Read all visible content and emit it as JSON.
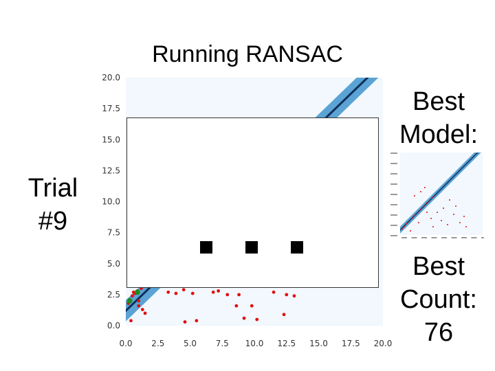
{
  "slide": {
    "title": "Running RANSAC",
    "trial_label": "Trial #9",
    "best_model_label": "Best Model:",
    "best_count_label": "Best Count: 76"
  },
  "colors": {
    "band": "#5aa3d4",
    "line": "#0d2d5a",
    "background": "#f2f8fd",
    "points": "#e01010",
    "sample_points": "#1e8c1e"
  },
  "chart_data": {
    "type": "scatter",
    "title": "",
    "xlabel": "",
    "ylabel": "",
    "xlim": [
      0,
      20
    ],
    "ylim": [
      0,
      20
    ],
    "xticks": [
      "0.0",
      "2.5",
      "5.0",
      "7.5",
      "10.0",
      "12.5",
      "15.0",
      "17.5",
      "20.0"
    ],
    "yticks": [
      "0.0",
      "2.5",
      "5.0",
      "7.5",
      "10.0",
      "12.5",
      "15.0",
      "17.5",
      "20.0"
    ],
    "grid": false,
    "fit_line": {
      "slope": 1.0,
      "intercept": 1.2
    },
    "points": [
      [
        0.3,
        2.1
      ],
      [
        0.5,
        2.4
      ],
      [
        0.7,
        2.6
      ],
      [
        0.9,
        2.8
      ],
      [
        0.2,
        1.8
      ],
      [
        1.2,
        3.0
      ],
      [
        1.0,
        1.6
      ],
      [
        1.3,
        1.3
      ],
      [
        1.5,
        1.0
      ],
      [
        0.4,
        0.4
      ],
      [
        1.0,
        2.0
      ],
      [
        0.6,
        2.7
      ],
      [
        3.3,
        2.7
      ],
      [
        3.9,
        2.6
      ],
      [
        5.2,
        2.6
      ],
      [
        4.5,
        2.9
      ],
      [
        7.2,
        2.8
      ],
      [
        6.8,
        2.7
      ],
      [
        7.9,
        2.5
      ],
      [
        8.6,
        1.6
      ],
      [
        9.2,
        0.6
      ],
      [
        9.8,
        1.6
      ],
      [
        11.5,
        2.7
      ],
      [
        12.5,
        2.5
      ],
      [
        13.1,
        2.4
      ],
      [
        12.3,
        0.9
      ],
      [
        10.2,
        0.5
      ],
      [
        5.5,
        0.4
      ],
      [
        4.6,
        0.3
      ],
      [
        8.8,
        2.5
      ]
    ],
    "sample": [
      [
        0.3,
        2.0
      ],
      [
        0.9,
        2.7
      ]
    ],
    "overlay_markers": 3
  },
  "thumbnail": {
    "fit_line": {
      "slope": 1.0,
      "intercept": 1.2
    },
    "points": [
      [
        0.5,
        1.5
      ],
      [
        1.0,
        2.0
      ],
      [
        1.5,
        2.7
      ],
      [
        2.2,
        3.2
      ],
      [
        3.0,
        4.1
      ],
      [
        3.6,
        4.8
      ],
      [
        4.3,
        5.4
      ],
      [
        5.0,
        6.2
      ],
      [
        5.8,
        7.0
      ],
      [
        6.4,
        7.7
      ],
      [
        7.1,
        8.2
      ],
      [
        7.8,
        9.0
      ],
      [
        8.5,
        9.6
      ],
      [
        3.5,
        9.5
      ],
      [
        5.0,
        10.5
      ],
      [
        6.0,
        11.5
      ],
      [
        7.5,
        4.0
      ],
      [
        9.0,
        5.5
      ],
      [
        10.0,
        3.5
      ],
      [
        11.5,
        2.5
      ],
      [
        13.0,
        5.0
      ],
      [
        14.5,
        3.0
      ],
      [
        12.0,
        8.5
      ],
      [
        15.5,
        4.5
      ],
      [
        10.5,
        6.5
      ],
      [
        4.5,
        3.0
      ],
      [
        2.5,
        1.0
      ],
      [
        16.0,
        2.0
      ],
      [
        13.5,
        7.0
      ],
      [
        8.0,
        2.0
      ],
      [
        6.5,
        5.5
      ]
    ]
  }
}
